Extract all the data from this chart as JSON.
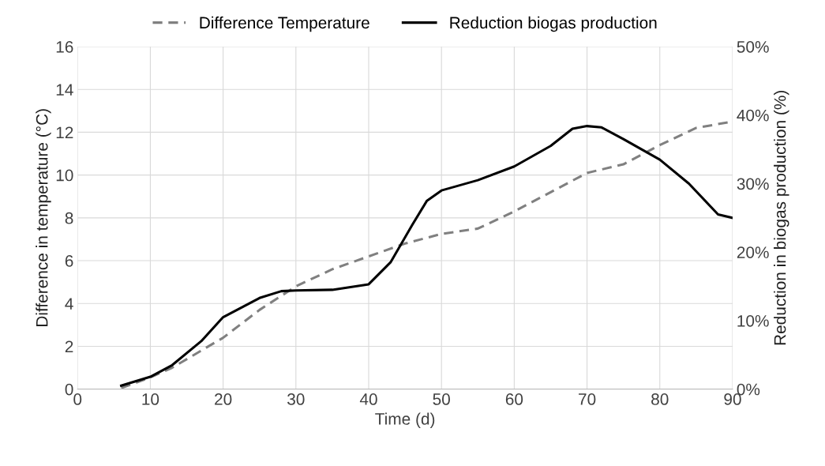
{
  "chart_data": {
    "type": "line",
    "xlabel": "Time (d)",
    "ylabel": "Difference in temperature (°C)",
    "y2label": "Reduction in biogas production (%)",
    "xlim": [
      0,
      90
    ],
    "xticks": [
      0,
      10,
      20,
      30,
      40,
      50,
      60,
      70,
      80,
      90
    ],
    "ylim": [
      0,
      16
    ],
    "yticks": [
      0,
      2,
      4,
      6,
      8,
      10,
      12,
      14,
      16
    ],
    "y2lim": [
      0,
      50
    ],
    "y2ticks": [
      {
        "value": 0,
        "label": "0%"
      },
      {
        "value": 10,
        "label": "10%"
      },
      {
        "value": 20,
        "label": "20%"
      },
      {
        "value": 30,
        "label": "30%"
      },
      {
        "value": 40,
        "label": "40%"
      },
      {
        "value": 50,
        "label": "50%"
      }
    ],
    "grid": true,
    "legend": "top",
    "marker": "none",
    "series": [
      {
        "name": "Difference Temperature",
        "color": "#808080",
        "line_style": "dashed",
        "x": [
          6,
          10,
          13,
          20,
          25,
          30,
          35,
          40,
          45,
          50,
          55,
          60,
          65,
          70,
          75,
          80,
          85,
          90
        ],
        "values": [
          0.05,
          0.55,
          1.0,
          2.4,
          3.7,
          4.8,
          5.6,
          6.2,
          6.8,
          7.25,
          7.5,
          8.3,
          9.2,
          10.1,
          10.5,
          11.4,
          12.2,
          12.5
        ]
      },
      {
        "name": "Reduction biogas production",
        "color": "#000000",
        "line_style": "solid",
        "axis": "y2",
        "x": [
          6,
          10,
          13,
          17,
          20,
          25,
          28,
          30,
          35,
          40,
          43,
          46,
          48,
          50,
          55,
          60,
          65,
          68,
          70,
          72,
          75,
          80,
          84,
          88,
          90
        ],
        "values": [
          0.5,
          1.8,
          3.5,
          7,
          10.5,
          13.3,
          14.3,
          14.4,
          14.5,
          15.3,
          18.5,
          24,
          27.5,
          29,
          30.5,
          32.5,
          35.5,
          38,
          38.4,
          38.2,
          36.5,
          33.5,
          30,
          25.5,
          25
        ]
      }
    ]
  }
}
